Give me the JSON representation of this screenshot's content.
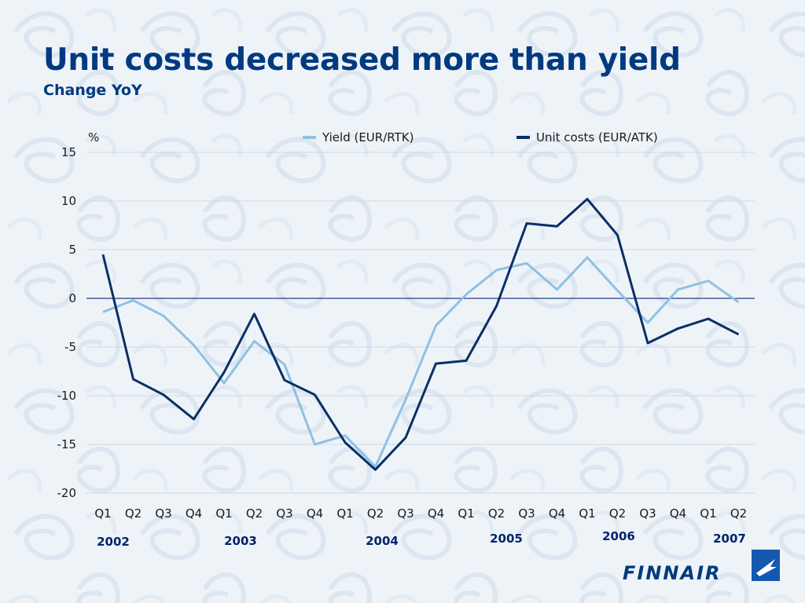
{
  "header": {
    "title": "Unit costs decreased more than yield",
    "subtitle": "Change YoY"
  },
  "logo": {
    "text": "FINNAIR"
  },
  "colors": {
    "title": "#003a80",
    "yield_series": "#8fc1e3",
    "unit_cost_series": "#0a2f66",
    "zero_line": "#1f3f86",
    "grid": "#cfd8e2"
  },
  "chart_data": {
    "type": "line",
    "unit_label": "%",
    "ylim": [
      -20,
      15
    ],
    "yticks": [
      15,
      10,
      5,
      0,
      -5,
      -10,
      -15,
      -20
    ],
    "grid": true,
    "legend_placement": "top",
    "categories": [
      "Q1",
      "Q2",
      "Q3",
      "Q4",
      "Q1",
      "Q2",
      "Q3",
      "Q4",
      "Q1",
      "Q2",
      "Q3",
      "Q4",
      "Q1",
      "Q2",
      "Q3",
      "Q4",
      "Q1",
      "Q2",
      "Q3",
      "Q4",
      "Q1",
      "Q2"
    ],
    "years": [
      {
        "label": "2002",
        "start_index": 0
      },
      {
        "label": "2003",
        "start_index": 4
      },
      {
        "label": "2004",
        "start_index": 8
      },
      {
        "label": "2005",
        "start_index": 12
      },
      {
        "label": "2006",
        "start_index": 16
      },
      {
        "label": "2007",
        "start_index": 20
      }
    ],
    "series": [
      {
        "name": "Yield (EUR/RTK)",
        "values": [
          -1.4,
          -0.2,
          -1.8,
          -4.8,
          -8.7,
          -4.4,
          -6.8,
          -15.0,
          -14.1,
          -17.3,
          -10.4,
          -2.8,
          0.4,
          2.9,
          3.6,
          0.9,
          4.2,
          0.8,
          -2.5,
          0.9,
          1.8,
          -0.4
        ]
      },
      {
        "name": "Unit costs (EUR/ATK)",
        "values": [
          4.5,
          -8.3,
          -9.9,
          -12.4,
          -7.6,
          -1.6,
          -8.4,
          -9.9,
          -14.8,
          -17.6,
          -14.3,
          -6.7,
          -6.4,
          -0.8,
          7.7,
          7.4,
          10.2,
          6.5,
          -4.6,
          -3.1,
          -2.1,
          -3.7
        ]
      }
    ]
  }
}
